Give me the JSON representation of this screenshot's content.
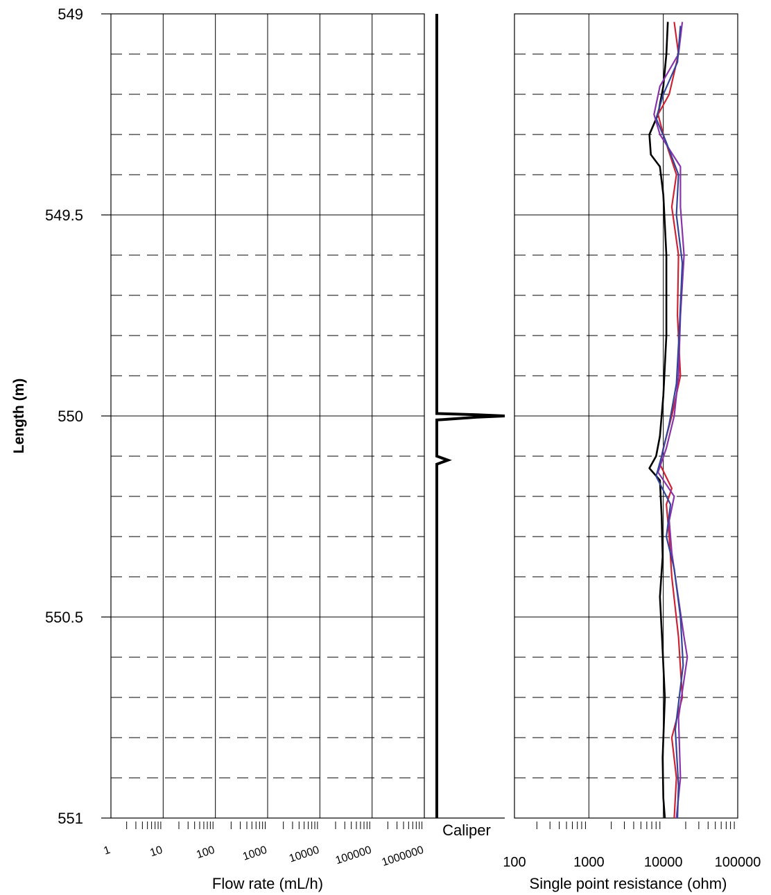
{
  "chart_data": [
    {
      "type": "line",
      "panel": "flow",
      "xlabel": "Flow rate (mL/h)",
      "ylabel": "Length (m)",
      "x_scale": "log",
      "xlim": [
        1,
        1000000
      ],
      "ylim": [
        549,
        551
      ],
      "y_axis": "inverted",
      "x_ticks": [
        "1",
        "10",
        "100",
        "1000",
        "10000",
        "100000",
        "1000000"
      ],
      "y_ticks": [
        "549",
        "549.5",
        "550",
        "550.5",
        "551"
      ],
      "grid": true,
      "series": []
    },
    {
      "type": "line",
      "panel": "caliper",
      "xlabel": "Caliper",
      "ylim": [
        549,
        551
      ],
      "y_axis": "inverted",
      "series": [
        {
          "color": "#000000",
          "points": [
            [
              0.02,
              549.0
            ],
            [
              0.02,
              549.98
            ],
            [
              0.02,
              549.994
            ],
            [
              0.6,
              549.997
            ],
            [
              1.0,
              550.0
            ],
            [
              0.6,
              550.003
            ],
            [
              0.02,
              550.01
            ],
            [
              0.02,
              550.1
            ],
            [
              0.18,
              550.11
            ],
            [
              0.02,
              550.12
            ],
            [
              0.02,
              551.0
            ]
          ]
        }
      ]
    },
    {
      "type": "line",
      "panel": "resistance",
      "xlabel": "Single point resistance (ohm)",
      "x_scale": "log",
      "xlim": [
        100,
        100000
      ],
      "ylim": [
        549,
        551
      ],
      "y_axis": "inverted",
      "x_ticks": [
        "100",
        "1000",
        "10000",
        "100000"
      ],
      "grid": true,
      "series": [
        {
          "color": "#000000",
          "points": [
            [
              11500,
              549.02
            ],
            [
              11000,
              549.1
            ],
            [
              10000,
              549.18
            ],
            [
              8500,
              549.25
            ],
            [
              6500,
              549.3
            ],
            [
              6800,
              549.35
            ],
            [
              9000,
              549.38
            ],
            [
              10000,
              549.45
            ],
            [
              11000,
              549.6
            ],
            [
              11000,
              549.8
            ],
            [
              10000,
              549.95
            ],
            [
              9000,
              550.05
            ],
            [
              8000,
              550.1
            ],
            [
              6500,
              550.13
            ],
            [
              9000,
              550.16
            ],
            [
              9500,
              550.25
            ],
            [
              9800,
              550.35
            ],
            [
              9000,
              550.45
            ],
            [
              9600,
              550.55
            ],
            [
              10500,
              550.7
            ],
            [
              9800,
              550.85
            ],
            [
              10000,
              550.95
            ],
            [
              10500,
              551.0
            ]
          ]
        },
        {
          "color": "#cc2233",
          "points": [
            [
              14000,
              549.02
            ],
            [
              16000,
              549.1
            ],
            [
              12000,
              549.2
            ],
            [
              8500,
              549.25
            ],
            [
              10000,
              549.3
            ],
            [
              15000,
              549.4
            ],
            [
              13000,
              549.48
            ],
            [
              16000,
              549.6
            ],
            [
              15500,
              549.75
            ],
            [
              17000,
              549.9
            ],
            [
              13000,
              550.0
            ],
            [
              10000,
              550.08
            ],
            [
              9000,
              550.12
            ],
            [
              13000,
              550.18
            ],
            [
              11000,
              550.22
            ],
            [
              12000,
              550.3
            ],
            [
              13000,
              550.4
            ],
            [
              16000,
              550.55
            ],
            [
              18000,
              550.7
            ],
            [
              13000,
              550.8
            ],
            [
              15000,
              550.9
            ],
            [
              14000,
              551.0
            ]
          ]
        },
        {
          "color": "#8833aa",
          "points": [
            [
              18000,
              549.02
            ],
            [
              16000,
              549.1
            ],
            [
              9000,
              549.18
            ],
            [
              7500,
              549.25
            ],
            [
              9000,
              549.3
            ],
            [
              17000,
              549.38
            ],
            [
              17000,
              549.48
            ],
            [
              19000,
              549.6
            ],
            [
              17000,
              549.75
            ],
            [
              16000,
              549.9
            ],
            [
              14000,
              550.0
            ],
            [
              11000,
              550.08
            ],
            [
              8500,
              550.14
            ],
            [
              14000,
              550.2
            ],
            [
              12000,
              550.26
            ],
            [
              13000,
              550.34
            ],
            [
              15000,
              550.42
            ],
            [
              19000,
              550.55
            ],
            [
              21000,
              550.6
            ],
            [
              16000,
              550.75
            ],
            [
              17000,
              550.9
            ],
            [
              15000,
              551.0
            ]
          ]
        },
        {
          "color": "#334499",
          "points": [
            [
              17000,
              549.03
            ],
            [
              15500,
              549.12
            ],
            [
              10000,
              549.2
            ],
            [
              8000,
              549.26
            ],
            [
              11000,
              549.32
            ],
            [
              16000,
              549.4
            ],
            [
              15000,
              549.5
            ],
            [
              18000,
              549.62
            ],
            [
              16500,
              549.78
            ],
            [
              15000,
              549.92
            ],
            [
              12000,
              550.02
            ],
            [
              9500,
              550.1
            ],
            [
              8000,
              550.15
            ],
            [
              12500,
              550.22
            ],
            [
              11000,
              550.3
            ],
            [
              14000,
              550.38
            ],
            [
              17000,
              550.5
            ],
            [
              18500,
              550.62
            ],
            [
              14500,
              550.78
            ],
            [
              16000,
              550.92
            ],
            [
              15500,
              551.0
            ]
          ]
        }
      ]
    }
  ]
}
